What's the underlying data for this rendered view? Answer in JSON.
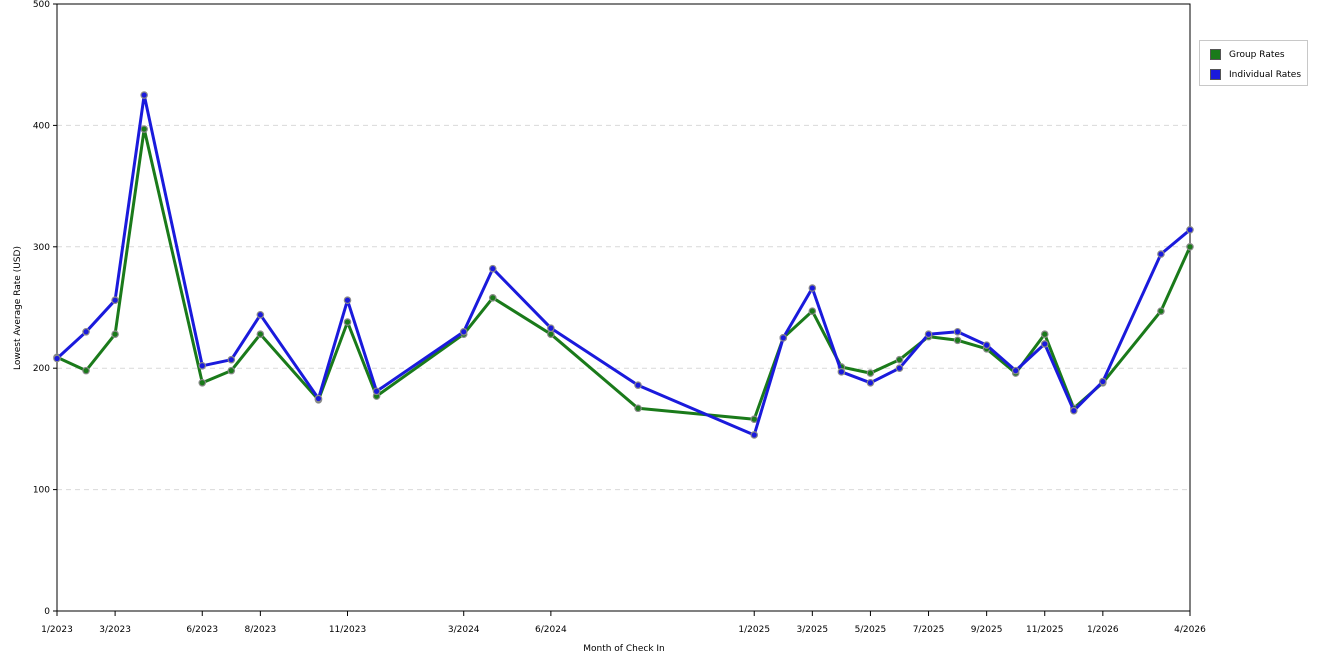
{
  "chart_data": {
    "type": "line",
    "xlabel": "Month of Check In",
    "ylabel": "Lowest Average Rate (USD)",
    "ylim": [
      0,
      500
    ],
    "yticks": [
      0,
      100,
      200,
      300,
      400,
      500
    ],
    "x": [
      "1/2023",
      "2/2023",
      "3/2023",
      "4/2023",
      "6/2023",
      "7/2023",
      "8/2023",
      "10/2023",
      "11/2023",
      "12/2023",
      "3/2024",
      "4/2024",
      "6/2024",
      "9/2024",
      "1/2025",
      "2/2025",
      "3/2025",
      "4/2025",
      "5/2025",
      "6/2025",
      "7/2025",
      "8/2025",
      "9/2025",
      "10/2025",
      "11/2025",
      "12/2025",
      "1/2026",
      "3/2026",
      "4/2026"
    ],
    "xtick_labels": [
      "1/2023",
      "3/2023",
      "6/2023",
      "8/2023",
      "11/2023",
      "3/2024",
      "6/2024",
      "1/2025",
      "3/2025",
      "5/2025",
      "7/2025",
      "9/2025",
      "11/2025",
      "1/2026",
      "4/2026"
    ],
    "series": [
      {
        "name": "Group Rates",
        "color": "#1a7a1a",
        "values": [
          209,
          198,
          228,
          397,
          188,
          198,
          228,
          174,
          238,
          177,
          228,
          258,
          228,
          167,
          158,
          225,
          247,
          201,
          196,
          207,
          226,
          223,
          216,
          196,
          228,
          167,
          188,
          247,
          300
        ]
      },
      {
        "name": "Individual Rates",
        "color": "#1a1adc",
        "values": [
          208,
          230,
          256,
          425,
          202,
          207,
          244,
          175,
          256,
          181,
          230,
          282,
          233,
          186,
          145,
          225,
          266,
          197,
          188,
          200,
          228,
          230,
          219,
          198,
          220,
          165,
          189,
          294,
          314
        ]
      }
    ],
    "grid": true,
    "legend_position": "right"
  }
}
